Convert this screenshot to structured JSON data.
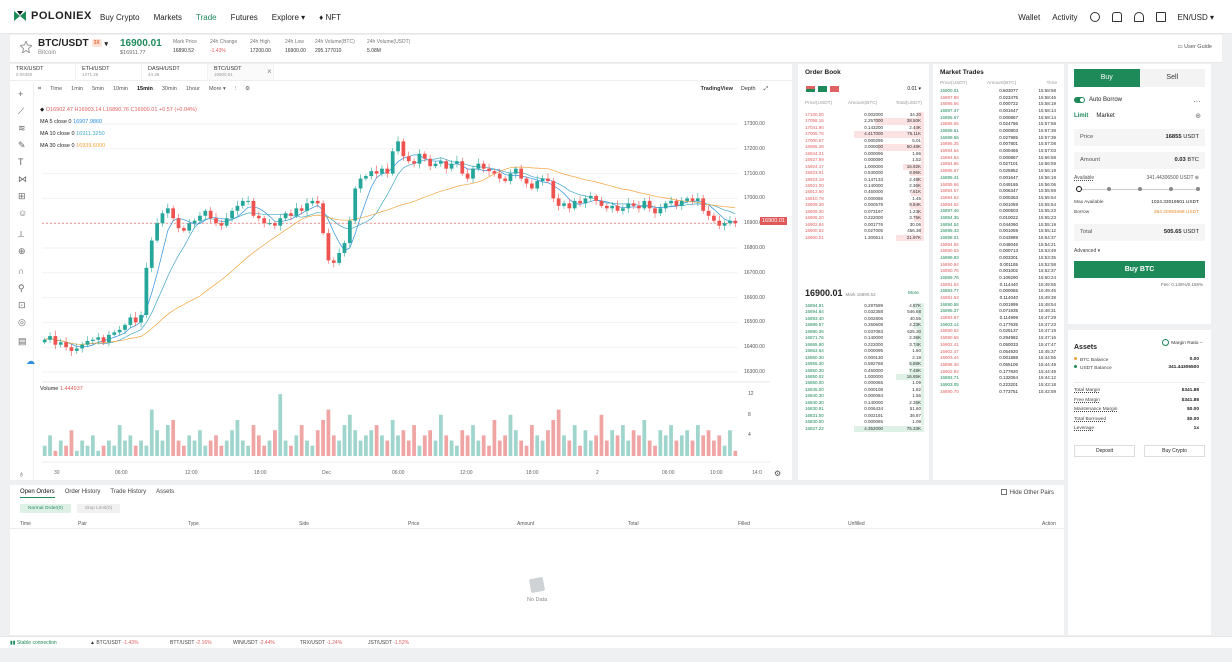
{
  "nav": {
    "brand": "POLONIEX",
    "links": [
      "Buy Crypto",
      "Markets",
      "Trade",
      "Futures",
      "Explore ▾",
      "♦ NFT"
    ],
    "active": 2,
    "wallet": "Wallet",
    "activity": "Activity",
    "currency": "EN/USD ▾"
  },
  "ticker": {
    "pair": "BTC/USDT",
    "badge": "3X",
    "sub": "Bitcoin",
    "price": "16900.01",
    "price_usd": "$16911.77",
    "stats": [
      {
        "label": "Mark Price",
        "value": "16890.52"
      },
      {
        "label": "24h Change",
        "value": "-1.43%"
      },
      {
        "label": "24h High",
        "value": "17200.00"
      },
      {
        "label": "24h Low",
        "value": "16900.00"
      },
      {
        "label": "24h Volume(BTC)",
        "value": "295.177010"
      },
      {
        "label": "24h Volume(USDT)",
        "value": "5.08M"
      }
    ],
    "user_guide": "User Guide"
  },
  "chart": {
    "tabs": [
      {
        "name": "TRX/USDT",
        "val": "0.05350"
      },
      {
        "name": "ETH/USDT",
        "val": "1271.25"
      },
      {
        "name": "DASH/USDT",
        "val": "44.36"
      },
      {
        "name": "BTC/USDT",
        "val": "16900.01"
      }
    ],
    "intervals": [
      "Time",
      "1min",
      "5min",
      "10min",
      "15min",
      "30min",
      "1hour",
      "More ▾"
    ],
    "active_interval": 4,
    "tradingview": "TradingView",
    "depth": "Depth",
    "ohlc": "O16902.47 H16903.14 L16890.76 C16900.01 +0.57 (+0.04%)",
    "ma5": "MA 5 close 0",
    "ma5v": "16907.9860",
    "ma10": "MA 10 close 0",
    "ma10v": "16911.3250",
    "ma30": "MA 30 close 0",
    "ma30v": "16939.6000",
    "price_ticks": [
      "17300.00",
      "17200.00",
      "17100.00",
      "17000.00",
      "16900.00",
      "16800.00",
      "16700.00",
      "16600.00",
      "16500.00",
      "16400.00",
      "16300.00"
    ],
    "current": "16900.01",
    "time_ticks": [
      "30",
      "06:00",
      "12:00",
      "18:00",
      "Dec",
      "06:00",
      "12:00",
      "18:00",
      "2",
      "06:00",
      "10:00",
      "14:0"
    ],
    "volume_label": "Volume",
    "volume_value": "1.444937",
    "vol_ticks": [
      "12",
      "8",
      "4"
    ],
    "closes": [
      16430,
      16445,
      16410,
      16420,
      16400,
      16385,
      16395,
      16410,
      16425,
      16430,
      16440,
      16420,
      16450,
      16460,
      16470,
      16490,
      16520,
      16500,
      16530,
      16720,
      16830,
      16900,
      16940,
      16960,
      16920,
      16880,
      16870,
      16900,
      16910,
      16930,
      16950,
      16920,
      16900,
      16890,
      16920,
      16950,
      16970,
      16990,
      16990,
      16930,
      16920,
      16900,
      16900,
      16890,
      16920,
      16940,
      16930,
      16960,
      16950,
      16980,
      16990,
      16980,
      16860,
      16750,
      16740,
      16780,
      16820,
      16910,
      17040,
      17080,
      17090,
      17110,
      17100,
      17120,
      17100,
      17190,
      17230,
      17170,
      17150,
      17140,
      17180,
      17160,
      17130,
      17140,
      17150,
      17120,
      17140,
      17150,
      17100,
      17080,
      17120,
      17140,
      17120,
      17110,
      17100,
      17080,
      17070,
      17100,
      17120,
      17080,
      17060,
      17040,
      17070,
      17080,
      17070,
      17000,
      16970,
      16980,
      16960,
      16990,
      16980,
      17000,
      17010,
      16990,
      16970,
      16960,
      16970,
      16950,
      16960,
      16980,
      16970,
      16960,
      16990,
      16960,
      16940,
      16960,
      16980,
      16990,
      16970,
      16990,
      17000,
      16990,
      17000,
      16950,
      16930,
      16910,
      16890,
      16900,
      16910,
      16900
    ],
    "volumes": [
      2,
      4,
      1,
      3,
      2,
      5,
      1,
      3,
      2,
      4,
      1,
      2,
      3,
      2,
      6,
      3,
      4,
      2,
      3,
      2,
      9,
      5,
      3,
      6,
      7,
      3,
      2,
      4,
      3,
      5,
      2,
      3,
      4,
      2,
      3,
      5,
      7,
      3,
      2,
      6,
      4,
      2,
      3,
      5,
      12,
      3,
      2,
      4,
      6,
      3,
      2,
      5,
      7,
      9,
      4,
      3,
      6,
      8,
      5,
      3,
      4,
      5,
      6,
      4,
      3,
      7,
      4,
      5,
      3,
      6,
      2,
      4,
      5,
      3,
      8,
      4,
      3,
      2,
      5,
      4,
      6,
      3,
      4,
      2,
      7,
      3,
      4,
      8,
      5,
      3,
      2,
      6,
      4,
      3,
      5,
      7,
      9,
      4,
      3,
      6,
      2,
      5,
      3,
      4,
      8,
      3,
      5,
      4,
      6,
      3,
      5,
      4,
      7,
      3,
      2,
      5,
      4,
      6,
      3,
      4,
      5,
      3,
      6,
      4,
      5,
      3,
      4,
      2,
      5,
      1
    ]
  },
  "orderbook": {
    "title": "Order Book",
    "precision": "0.01 ▾",
    "headers": [
      "Price(USDT)",
      "Amount(BTC)",
      "Total(USDT)"
    ],
    "asks": [
      [
        "17100.00",
        "0.002000",
        "34.20",
        10
      ],
      [
        "17058.16",
        "2.257000",
        "38.50K",
        70
      ],
      [
        "17041.90",
        "0.143200",
        "2.44K",
        14
      ],
      [
        "17005.76",
        "4.417000",
        "75.11K",
        100
      ],
      [
        "17000.67",
        "0.000295",
        "5.01",
        4
      ],
      [
        "16965.28",
        "3.000000",
        "50.48K",
        66
      ],
      [
        "16944.31",
        "0.000096",
        "1.66",
        4
      ],
      [
        "16927.69",
        "0.000090",
        "1.52",
        4
      ],
      [
        "16924.47",
        "1.000000",
        "16.92K",
        30
      ],
      [
        "16923.91",
        "0.530000",
        "8.96K",
        20
      ],
      [
        "16923.19",
        "0.147133",
        "2.48K",
        12
      ],
      [
        "16921.00",
        "0.140000",
        "2.36K",
        12
      ],
      [
        "16913.60",
        "0.450000",
        "7.61K",
        18
      ],
      [
        "16910.78",
        "0.000086",
        "1.45",
        4
      ],
      [
        "16909.39",
        "0.000579",
        "9.84K",
        20
      ],
      [
        "16909.30",
        "0.073197",
        "1.23K",
        10
      ],
      [
        "16906.20",
        "0.222000",
        "3.75K",
        14
      ],
      [
        "16902.84",
        "0.001776",
        "30.06",
        5
      ],
      [
        "16900.62",
        "0.027005",
        "456.38",
        6
      ],
      [
        "16900.01",
        "1.300514",
        "21.97K",
        40
      ]
    ],
    "mid": "16900.01",
    "mark": "Mark 16890.52",
    "more": "More",
    "bids": [
      [
        "16894.81",
        "0.297599",
        "4.87K",
        16
      ],
      [
        "16894.84",
        "0.032358",
        "546.68",
        8
      ],
      [
        "16893.40",
        "0.002806",
        "40.55",
        5
      ],
      [
        "16889.57",
        "0.250608",
        "4.23K",
        15
      ],
      [
        "16880.36",
        "0.037083",
        "625.30",
        8
      ],
      [
        "16871.76",
        "0.140000",
        "2.36K",
        12
      ],
      [
        "16865.90",
        "0.222000",
        "3.74K",
        14
      ],
      [
        "16863.64",
        "0.000095",
        "1.60",
        4
      ],
      [
        "16860.30",
        "0.000130",
        "2.19",
        4
      ],
      [
        "16855.30",
        "0.592768",
        "5.88K",
        20
      ],
      [
        "16850.30",
        "0.450000",
        "7.48K",
        22
      ],
      [
        "16850.02",
        "1.000000",
        "16.85K",
        40
      ],
      [
        "16850.00",
        "0.000065",
        "1.09",
        4
      ],
      [
        "16845.00",
        "0.000108",
        "1.82",
        4
      ],
      [
        "16840.30",
        "0.000084",
        "1.56",
        4
      ],
      [
        "16840.30",
        "0.140000",
        "2.35K",
        12
      ],
      [
        "16830.91",
        "0.006434",
        "51.60",
        5
      ],
      [
        "16831.00",
        "0.002191",
        "36.87",
        5
      ],
      [
        "16830.00",
        "0.000065",
        "1.09",
        4
      ],
      [
        "16827.22",
        "4.352000",
        "75.33K",
        100
      ]
    ]
  },
  "trades": {
    "title": "Market Trades",
    "headers": [
      "Price(USDT)",
      "Amount(BTC)",
      "Time"
    ],
    "rows": [
      [
        "16900.01",
        "0.603077",
        "15:58:58",
        "g"
      ],
      [
        "16897.88",
        "0.023475",
        "15:58:46",
        "r"
      ],
      [
        "16895.66",
        "0.000722",
        "15:58:19",
        "r"
      ],
      [
        "16897.47",
        "0.001647",
        "15:58:14",
        "g"
      ],
      [
        "16895.67",
        "0.000867",
        "15:58:14",
        "g"
      ],
      [
        "16895.65",
        "0.024786",
        "15:57:58",
        "r"
      ],
      [
        "16895.61",
        "0.000803",
        "15:57:38",
        "g"
      ],
      [
        "16899.56",
        "0.027985",
        "15:57:39",
        "g"
      ],
      [
        "16895.35",
        "0.007801",
        "15:57:08",
        "r"
      ],
      [
        "16894.64",
        "0.000465",
        "15:57:03",
        "r"
      ],
      [
        "16894.64",
        "0.000867",
        "15:56:58",
        "r"
      ],
      [
        "16894.86",
        "0.027101",
        "15:56:59",
        "r"
      ],
      [
        "16895.67",
        "0.025952",
        "15:56:19",
        "r"
      ],
      [
        "16895.41",
        "0.001647",
        "15:56:18",
        "g"
      ],
      [
        "16895.66",
        "0.049165",
        "15:56:06",
        "r"
      ],
      [
        "16894.67",
        "0.006347",
        "15:55:59",
        "r"
      ],
      [
        "16894.62",
        "0.000363",
        "15:55:54",
        "r"
      ],
      [
        "16894.62",
        "0.001059",
        "15:55:54",
        "r"
      ],
      [
        "16897.46",
        "0.000503",
        "15:55:23",
        "g"
      ],
      [
        "16894.35",
        "0.010022",
        "15:55:23",
        "g"
      ],
      [
        "16894.54",
        "0.044060",
        "15:55:19",
        "g"
      ],
      [
        "16895.43",
        "0.001059",
        "15:55:12",
        "g"
      ],
      [
        "16898.01",
        "0.043989",
        "15:54:37",
        "g"
      ],
      [
        "16894.56",
        "0.048046",
        "15:54:21",
        "r"
      ],
      [
        "16890.53",
        "0.000713",
        "15:53:49",
        "r"
      ],
      [
        "16899.93",
        "0.003301",
        "15:53:35",
        "g"
      ],
      [
        "16890.84",
        "0.001185",
        "15:52:58",
        "r"
      ],
      [
        "16890.76",
        "0.001002",
        "15:52:37",
        "r"
      ],
      [
        "16899.76",
        "0.109290",
        "15:50:24",
        "g"
      ],
      [
        "16891.64",
        "0.114440",
        "15:49:55",
        "r"
      ],
      [
        "16893.77",
        "0.000065",
        "15:49:45",
        "g"
      ],
      [
        "16891.63",
        "0.114040",
        "15:49:38",
        "r"
      ],
      [
        "16890.58",
        "0.001999",
        "15:48:54",
        "g"
      ],
      [
        "16895.37",
        "0.071935",
        "15:48:31",
        "g"
      ],
      [
        "16893.87",
        "0.114999",
        "15:47:29",
        "r"
      ],
      [
        "16903.14",
        "0.177635",
        "15:47:23",
        "g"
      ],
      [
        "16890.62",
        "0.025137",
        "15:47:19",
        "r"
      ],
      [
        "16890.65",
        "0.294982",
        "15:47:16",
        "r"
      ],
      [
        "16902.41",
        "0.050033",
        "15:47:47",
        "r"
      ],
      [
        "16902.47",
        "0.054920",
        "15:45:37",
        "r"
      ],
      [
        "16903.44",
        "0.001888",
        "15:44:56",
        "r"
      ],
      [
        "16898.36",
        "0.055106",
        "15:44:49",
        "r"
      ],
      [
        "16902.92",
        "0.177820",
        "15:44:49",
        "r"
      ],
      [
        "16893.71",
        "0.132064",
        "15:44:12",
        "g"
      ],
      [
        "16903.05",
        "0.223201",
        "15:43:18",
        "g"
      ],
      [
        "16890.70",
        "0.773751",
        "15:42:59",
        "r"
      ]
    ]
  },
  "trade": {
    "buy": "Buy",
    "sell": "Sell",
    "auto_borrow": "Auto Borrow",
    "limit": "Limit",
    "market": "Market",
    "price_label": "Price",
    "price_value": "16855",
    "price_unit": "USDT",
    "amount_label": "Amount",
    "amount_value": "0.03",
    "amount_unit": "BTC",
    "available_label": "Available",
    "available_value": "341.44306500 USDT ⊕",
    "max_label": "Max Available",
    "max_value": "1024.33019501 USDT",
    "borrow_label": "Borrow",
    "borrow_value": "384.20093489 USDT",
    "total_label": "Total",
    "total_value": "505.65",
    "total_unit": "USDT",
    "advanced": "Advanced ▾",
    "button": "Buy BTC",
    "fee": "Fee: 0.145%/0.155%"
  },
  "assets": {
    "title": "Assets",
    "margin_ratio": "Margin Ratio --",
    "balances": [
      {
        "name": "BTC Balance",
        "value": "0.00",
        "color": "#f1a33c"
      },
      {
        "name": "USDT Balance",
        "value": "341.44306500",
        "color": "#1e8a5a"
      }
    ],
    "margin": [
      [
        "Total Margin",
        "$341.88"
      ],
      [
        "Free Margin",
        "$341.88"
      ],
      [
        "Maintenance Margin",
        "$0.00"
      ],
      [
        "Total Borrowed",
        "$0.00"
      ],
      [
        "Leverage",
        "1x"
      ]
    ],
    "deposit": "Deposit",
    "buy_crypto": "Buy Crypto"
  },
  "orders": {
    "tabs": [
      "Open Orders",
      "Order History",
      "Trade History",
      "Assets"
    ],
    "hide": "Hide Other Pairs",
    "subtabs": [
      "Normal Order(0)",
      "Stop Limit(0)"
    ],
    "columns": [
      "Time",
      "Pair",
      "Type",
      "Side",
      "Price",
      "Amount",
      "Total",
      "Filled",
      "Unfilled",
      "Action"
    ],
    "empty": "No Data"
  },
  "status": {
    "stable": "Stable connection",
    "pairs": [
      [
        "BTC/USDT",
        "-1.43%"
      ],
      [
        "BTT/USDT",
        "-2.16%"
      ],
      [
        "WIN/USDT",
        "-2.44%"
      ],
      [
        "TRX/USDT",
        "-1.24%"
      ],
      [
        "JST/USDT",
        "-1.52%"
      ]
    ]
  },
  "colors": {
    "up": "#26a69a",
    "down": "#ef5350",
    "accent": "#1e8a5a"
  }
}
